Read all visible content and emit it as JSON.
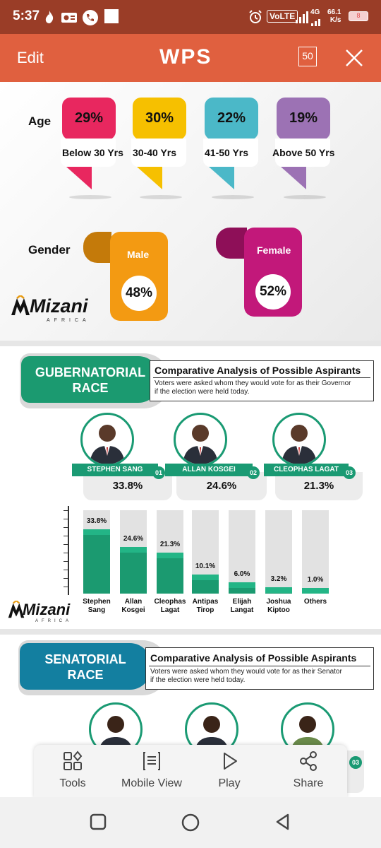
{
  "status_bar": {
    "time": "5:37",
    "volte": "VoLTE",
    "network": "4G",
    "speed_value": "66.1",
    "speed_unit": "K/s",
    "battery": "8"
  },
  "app_bar": {
    "edit_label": "Edit",
    "logo": "WPS",
    "page_count": "50",
    "close_icon": "close-icon"
  },
  "demographics": {
    "age_label": "Age",
    "age_groups": [
      {
        "pct": "29%",
        "label": "Below 30 Yrs",
        "color": "#e8275f"
      },
      {
        "pct": "30%",
        "label": "30-40 Yrs",
        "color": "#f6c000"
      },
      {
        "pct": "22%",
        "label": "41-50 Yrs",
        "color": "#4bb8c8"
      },
      {
        "pct": "19%",
        "label": "Above 50 Yrs",
        "color": "#9c72b4"
      }
    ],
    "gender_label": "Gender",
    "genders": [
      {
        "label": "Male",
        "pct": "48%",
        "color": "#f39a12"
      },
      {
        "label": "Female",
        "pct": "52%",
        "color": "#c2187a"
      }
    ],
    "logo_text": "Mizani",
    "logo_sub": "AFRICA"
  },
  "gubernatorial": {
    "banner_line1": "GUBERNATORIAL",
    "banner_line2": "RACE",
    "title": "Comparative Analysis of Possible Aspirants",
    "subtitle_line1": "Voters were asked whom they would vote for as their Governor",
    "subtitle_line2": "if the election were held today.",
    "top3": [
      {
        "name": "STEPHEN SANG",
        "num": "01",
        "pct": "33.8%"
      },
      {
        "name": "ALLAN KOSGEI",
        "num": "02",
        "pct": "24.6%"
      },
      {
        "name": "CLEOPHAS LAGAT",
        "num": "03",
        "pct": "21.3%"
      }
    ],
    "logo_text": "Mizani",
    "logo_sub": "AFRICA"
  },
  "chart_data": {
    "type": "bar",
    "categories": [
      "Stephen Sang",
      "Allan Kosgei",
      "Cleophas Lagat",
      "Antipas Tirop",
      "Elijah Langat",
      "Joshua Kiptoo",
      "Others"
    ],
    "values": [
      33.8,
      24.6,
      21.3,
      10.1,
      6.0,
      3.2,
      1.0
    ],
    "value_labels": [
      "33.8%",
      "24.6%",
      "21.3%",
      "10.1%",
      "6.0%",
      "3.2%",
      "1.0%"
    ],
    "name_lines": [
      [
        "Stephen",
        "Sang"
      ],
      [
        "Allan",
        "Kosgei"
      ],
      [
        "Cleophas",
        "Lagat"
      ],
      [
        "Antipas",
        "Tirop"
      ],
      [
        "Elijah",
        "Langat"
      ],
      [
        "Joshua",
        "Kiptoo"
      ],
      [
        "Others",
        ""
      ]
    ],
    "ylim": [
      0,
      40
    ],
    "bar_color": "#1b9a70",
    "track_color": "#e2e2e2",
    "title": "",
    "xlabel": "",
    "ylabel": ""
  },
  "senatorial": {
    "banner_line1": "SENATORIAL",
    "banner_line2": "RACE",
    "title": "Comparative Analysis of Possible Aspirants",
    "subtitle_line1": "Voters were asked whom they would vote for as their Senator",
    "subtitle_line2": "if the election were held today.",
    "badge_num": "03"
  },
  "toolbar": {
    "items": [
      {
        "label": "Tools",
        "icon": "tools-icon"
      },
      {
        "label": "Mobile View",
        "icon": "mobile-view-icon"
      },
      {
        "label": "Play",
        "icon": "play-icon"
      },
      {
        "label": "Share",
        "icon": "share-icon"
      }
    ]
  },
  "nav_bar": {
    "icons": [
      "recents-icon",
      "home-icon",
      "back-icon"
    ]
  }
}
